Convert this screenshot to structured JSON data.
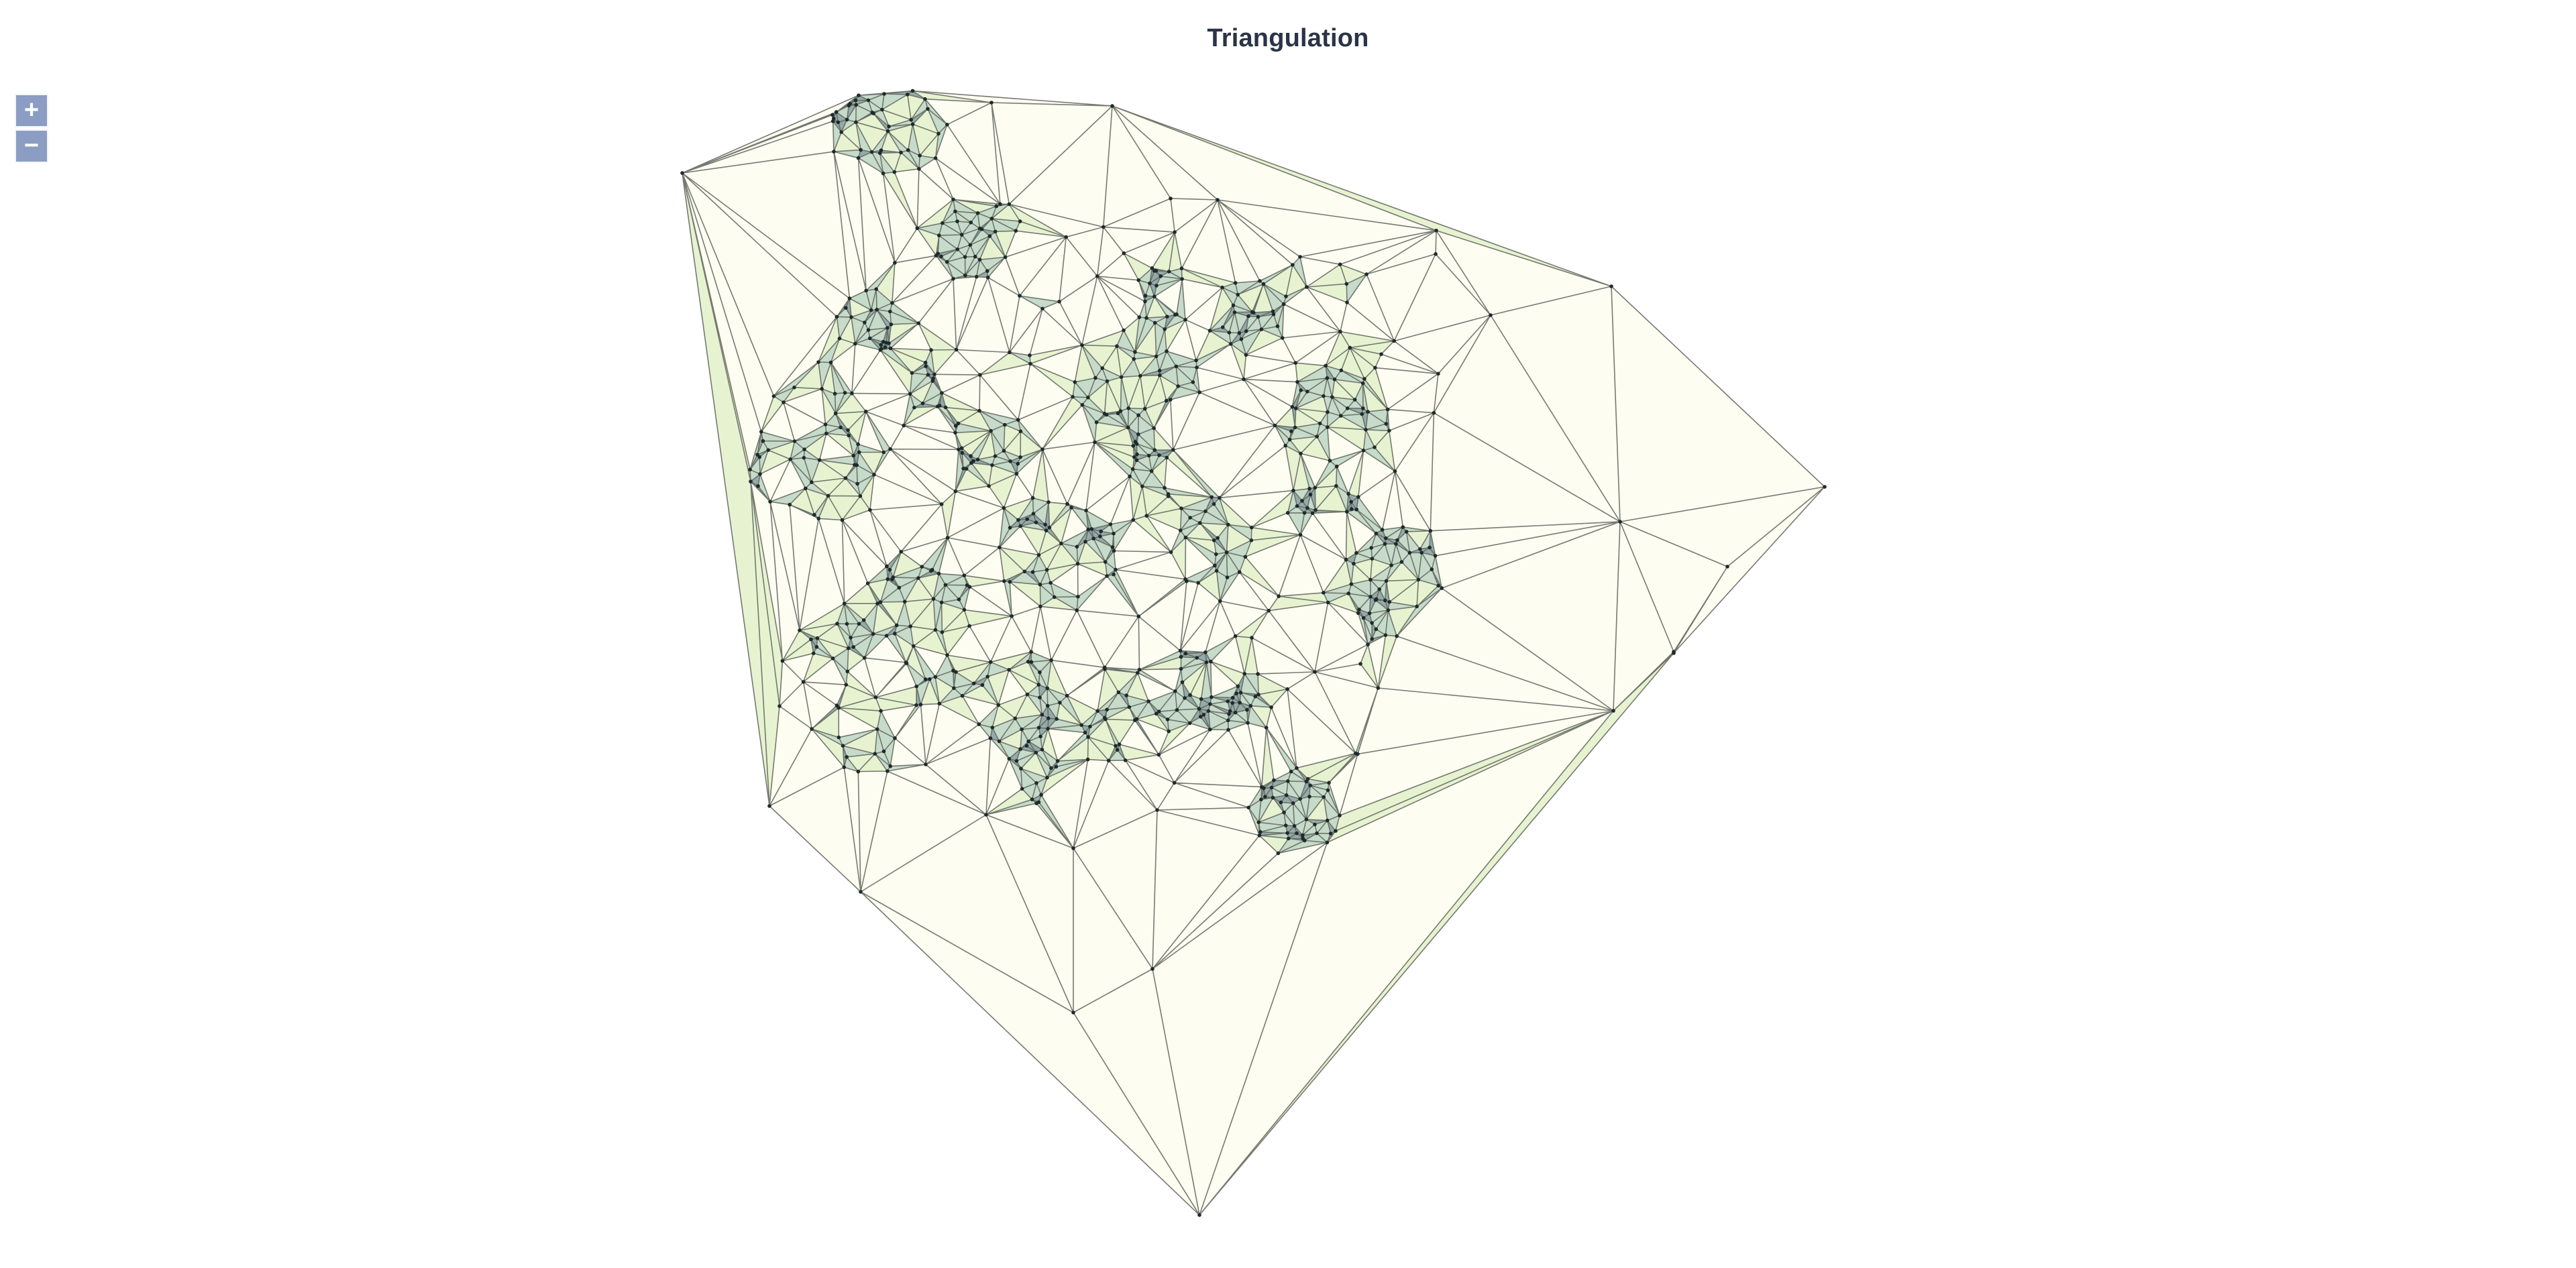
{
  "title": "Triangulation",
  "controls": {
    "zoom_in_label": "+",
    "zoom_out_label": "−"
  },
  "colors": {
    "light_fill": "#fdfdf1",
    "medium_fill": "#e6f1cf",
    "dark_fill": "#c3d9c6",
    "darkest_fill": "#8fa7a4",
    "edge": "#5f645c",
    "vertex": "#1e2a2a",
    "zoom_button": "#8b9dc3",
    "title_text": "#2a3446"
  }
}
